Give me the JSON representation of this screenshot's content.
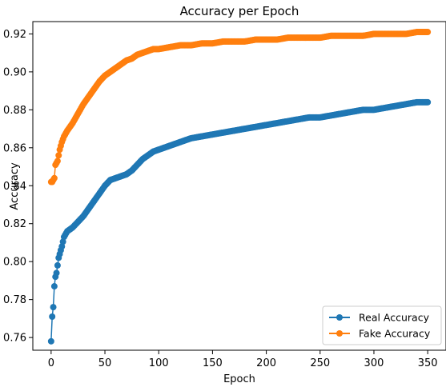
{
  "chart_data": {
    "type": "line",
    "title": "Accuracy per Epoch",
    "xlabel": "Epoch",
    "ylabel": "Accuracy",
    "xlim": [
      -17,
      367
    ],
    "ylim": [
      0.7533,
      0.9265
    ],
    "xticks": [
      0,
      50,
      100,
      150,
      200,
      250,
      300,
      350
    ],
    "yticks": [
      0.76,
      0.78,
      0.8,
      0.82,
      0.84,
      0.86,
      0.88,
      0.9,
      0.92
    ],
    "ytick_labels": [
      "0.76",
      "0.78",
      "0.80",
      "0.82",
      "0.84",
      "0.86",
      "0.88",
      "0.90",
      "0.92"
    ],
    "xtick_labels": [
      "0",
      "50",
      "100",
      "150",
      "200",
      "250",
      "300",
      "350"
    ],
    "grid": false,
    "legend_position": "bottom-right",
    "marker": "circle",
    "series": [
      {
        "name": "Real Accuracy",
        "color": "#1f77b4",
        "x": [
          0,
          1,
          2,
          3,
          4,
          5,
          6,
          7,
          8,
          10,
          12,
          15,
          20,
          25,
          30,
          35,
          40,
          45,
          50,
          55,
          60,
          65,
          70,
          75,
          80,
          85,
          90,
          95,
          100,
          110,
          120,
          130,
          140,
          150,
          160,
          170,
          180,
          190,
          200,
          210,
          220,
          230,
          240,
          250,
          260,
          270,
          280,
          290,
          300,
          310,
          320,
          330,
          340,
          350
        ],
        "y": [
          0.758,
          0.771,
          0.776,
          0.787,
          0.792,
          0.794,
          0.798,
          0.802,
          0.804,
          0.808,
          0.813,
          0.816,
          0.818,
          0.821,
          0.824,
          0.828,
          0.832,
          0.836,
          0.84,
          0.843,
          0.844,
          0.845,
          0.846,
          0.848,
          0.851,
          0.854,
          0.856,
          0.858,
          0.859,
          0.861,
          0.863,
          0.865,
          0.866,
          0.867,
          0.868,
          0.869,
          0.87,
          0.871,
          0.872,
          0.873,
          0.874,
          0.875,
          0.876,
          0.876,
          0.877,
          0.878,
          0.879,
          0.88,
          0.88,
          0.881,
          0.882,
          0.883,
          0.884,
          0.884
        ]
      },
      {
        "name": "Fake Accuracy",
        "color": "#ff7f0e",
        "x": [
          0,
          1,
          2,
          3,
          4,
          5,
          6,
          7,
          8,
          10,
          12,
          15,
          20,
          25,
          30,
          35,
          40,
          45,
          50,
          55,
          60,
          65,
          70,
          75,
          80,
          85,
          90,
          95,
          100,
          110,
          120,
          130,
          140,
          150,
          160,
          170,
          180,
          190,
          200,
          210,
          220,
          230,
          240,
          250,
          260,
          270,
          280,
          290,
          300,
          310,
          320,
          330,
          340,
          350
        ],
        "y": [
          0.842,
          0.842,
          0.843,
          0.844,
          0.851,
          0.852,
          0.853,
          0.856,
          0.859,
          0.863,
          0.866,
          0.869,
          0.873,
          0.878,
          0.883,
          0.887,
          0.891,
          0.895,
          0.898,
          0.9,
          0.902,
          0.904,
          0.906,
          0.907,
          0.909,
          0.91,
          0.911,
          0.912,
          0.912,
          0.913,
          0.914,
          0.914,
          0.915,
          0.915,
          0.916,
          0.916,
          0.916,
          0.917,
          0.917,
          0.917,
          0.918,
          0.918,
          0.918,
          0.918,
          0.919,
          0.919,
          0.919,
          0.919,
          0.92,
          0.92,
          0.92,
          0.92,
          0.921,
          0.921
        ]
      }
    ]
  }
}
